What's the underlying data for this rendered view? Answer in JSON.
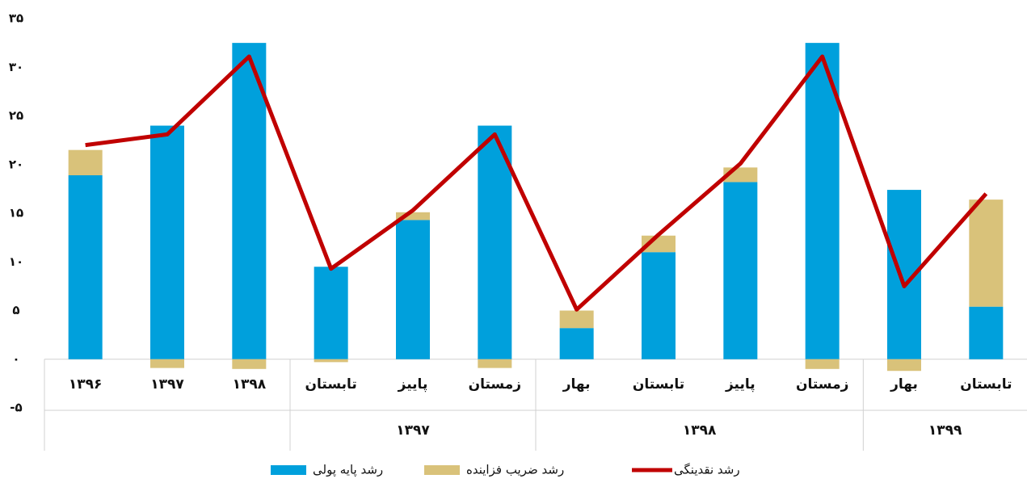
{
  "chart_data": {
    "type": "bar",
    "categories": [
      "۱۳۹۶",
      "۱۳۹۷",
      "۱۳۹۸",
      "تابستان",
      "پاییز",
      "زمستان",
      "بهار",
      "تابستان",
      "پاییز",
      "زمستان",
      "بهار",
      "تابستان"
    ],
    "groups": [
      null,
      null,
      null,
      "۱۳۹۷",
      "۱۳۹۷",
      "۱۳۹۷",
      "۱۳۹۸",
      "۱۳۹۸",
      "۱۳۹۸",
      "۱۳۹۸",
      "۱۳۹۹",
      "۱۳۹۹"
    ],
    "series": [
      {
        "name": "رشد پایه پولی",
        "type": "bar",
        "color": "#00a0dc",
        "values": [
          18.9,
          24.0,
          32.5,
          9.5,
          14.3,
          24.0,
          3.2,
          11.0,
          18.2,
          32.5,
          17.4,
          5.4
        ]
      },
      {
        "name": "رشد ضریب فزاینده",
        "type": "bar",
        "color": "#d9c27a",
        "values": [
          2.6,
          -0.9,
          -1.0,
          -0.3,
          0.8,
          -0.9,
          1.8,
          1.7,
          1.5,
          -1.0,
          -1.2,
          11.0
        ]
      },
      {
        "name": "رشد نقدینگی",
        "type": "line",
        "color": "#c00000",
        "values": [
          22.0,
          23.1,
          31.1,
          9.3,
          15.3,
          23.1,
          5.1,
          12.8,
          20.1,
          31.1,
          7.5,
          17.0
        ]
      }
    ],
    "stacked": true,
    "ylim": [
      -5,
      35
    ],
    "yticks": [
      {
        "value": -5,
        "label": "-۵"
      },
      {
        "value": 0,
        "label": "۰"
      },
      {
        "value": 5,
        "label": "۵"
      },
      {
        "value": 10,
        "label": "۱۰"
      },
      {
        "value": 15,
        "label": "۱۵"
      },
      {
        "value": 20,
        "label": "۲۰"
      },
      {
        "value": 25,
        "label": "۲۵"
      },
      {
        "value": 30,
        "label": "۳۰"
      },
      {
        "value": 35,
        "label": "۳۵"
      }
    ],
    "legend": "bottom"
  }
}
